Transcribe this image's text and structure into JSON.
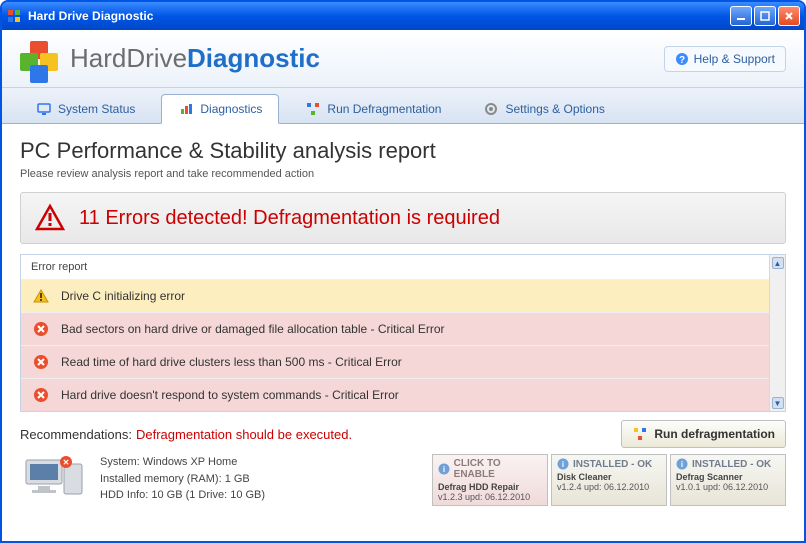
{
  "titlebar": {
    "title": "Hard Drive Diagnostic"
  },
  "brand": {
    "text1": "HardDrive",
    "text2": "Diagnostic"
  },
  "help": {
    "label": "Help & Support"
  },
  "tabs": [
    {
      "label": "System Status",
      "icon": "monitor",
      "active": false
    },
    {
      "label": "Diagnostics",
      "icon": "chart",
      "active": true
    },
    {
      "label": "Run Defragmentation",
      "icon": "defrag",
      "active": false
    },
    {
      "label": "Settings & Options",
      "icon": "gear",
      "active": false
    }
  ],
  "report": {
    "title": "PC Performance & Stability analysis report",
    "subtitle": "Please review analysis report and take recommended action"
  },
  "alert": {
    "text": "11 Errors detected! Defragmentation is required"
  },
  "error_report": {
    "header": "Error report",
    "items": [
      {
        "type": "warn",
        "text": "Drive C initializing error"
      },
      {
        "type": "crit",
        "text": "Bad sectors on hard drive or damaged file allocation table - Critical Error"
      },
      {
        "type": "crit",
        "text": "Read time of hard drive clusters less than 500 ms - Critical Error"
      },
      {
        "type": "crit",
        "text": "Hard drive doesn't respond to system commands - Critical Error"
      }
    ]
  },
  "recommend": {
    "label": "Recommendations:",
    "text": "Defragmentation should be executed.",
    "button": "Run defragmentation"
  },
  "system": {
    "os": "System: Windows XP Home",
    "ram": "Installed memory (RAM): 1 GB",
    "hdd": "HDD Info: 10 GB (1 Drive: 10 GB)"
  },
  "modules": [
    {
      "status": "CLICK TO ENABLE",
      "name": "Defrag HDD Repair",
      "ver": "v1.2.3 upd: 06.12.2010",
      "kind": "enable"
    },
    {
      "status": "INSTALLED - OK",
      "name": "Disk Cleaner",
      "ver": "v1.2.4 upd: 06.12.2010",
      "kind": "ok"
    },
    {
      "status": "INSTALLED - OK",
      "name": "Defrag Scanner",
      "ver": "v1.0.1 upd: 06.12.2010",
      "kind": "ok"
    }
  ],
  "colors": {
    "titlebar_grad": [
      "#3b8cff",
      "#0055e5",
      "#0048c8"
    ],
    "accent_blue": "#1f6fc9",
    "alert_red": "#cc0000",
    "warn_row": "#fdeec0",
    "crit_row": "#f5d7d7",
    "tab_border": "#9ab1cf",
    "module_enable_bg": [
      "#faf2f2",
      "#f0dada"
    ],
    "module_ok_bg": [
      "#f6f6f3",
      "#e8e5d6"
    ]
  }
}
